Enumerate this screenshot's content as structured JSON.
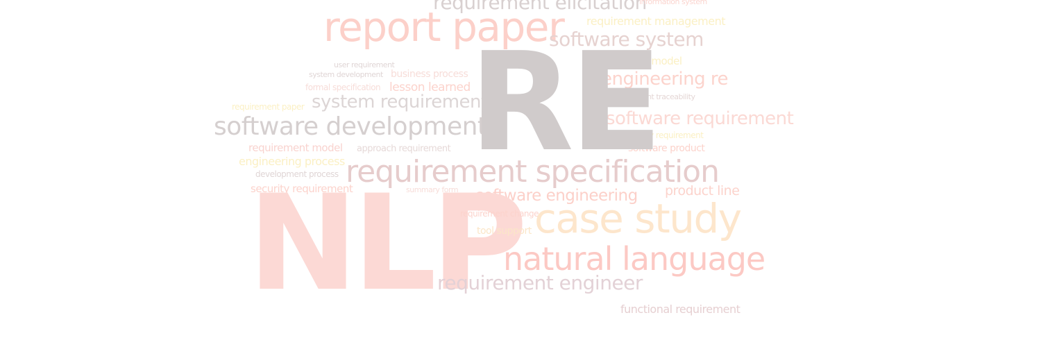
{
  "word_cloud": {
    "words": {
      "re": "RE",
      "nlp": "NLP",
      "requirement_elicitation": "requirement elicitation",
      "information_system": "information system",
      "report_paper": "report paper",
      "requirement_management": "requirement management",
      "software_system": "software system",
      "goal_model": "goal model",
      "engineering_re": "engineering re",
      "requirement_traceability": "requirement traceability",
      "software_requirement": "software requirement",
      "quality_requirement": "quality requirement",
      "software_product": "software product",
      "user_requirement": "user requirement",
      "system_development": "system development",
      "business_process": "business process",
      "formal_specification": "formal specification",
      "lesson_learned": "lesson learned",
      "requirement_paper": "requirement paper",
      "system_requirement": "system requirement",
      "software_development": "software development",
      "requirement_model": "requirement model",
      "approach_requirement": "approach requirement",
      "engineering_process": "engineering process",
      "requirement_specification": "requirement specification",
      "development_process": "development process",
      "security_requirement": "security requirement",
      "summary_form": "summary form",
      "software_engineering": "software engineering",
      "product_line": "product line",
      "requirement_change": "requirement change",
      "case_study": "case study",
      "tool_support": "tool support",
      "natural_language": "natural language",
      "requirement_engineer": "requirement engineer",
      "functional_requirement": "functional requirement"
    }
  }
}
